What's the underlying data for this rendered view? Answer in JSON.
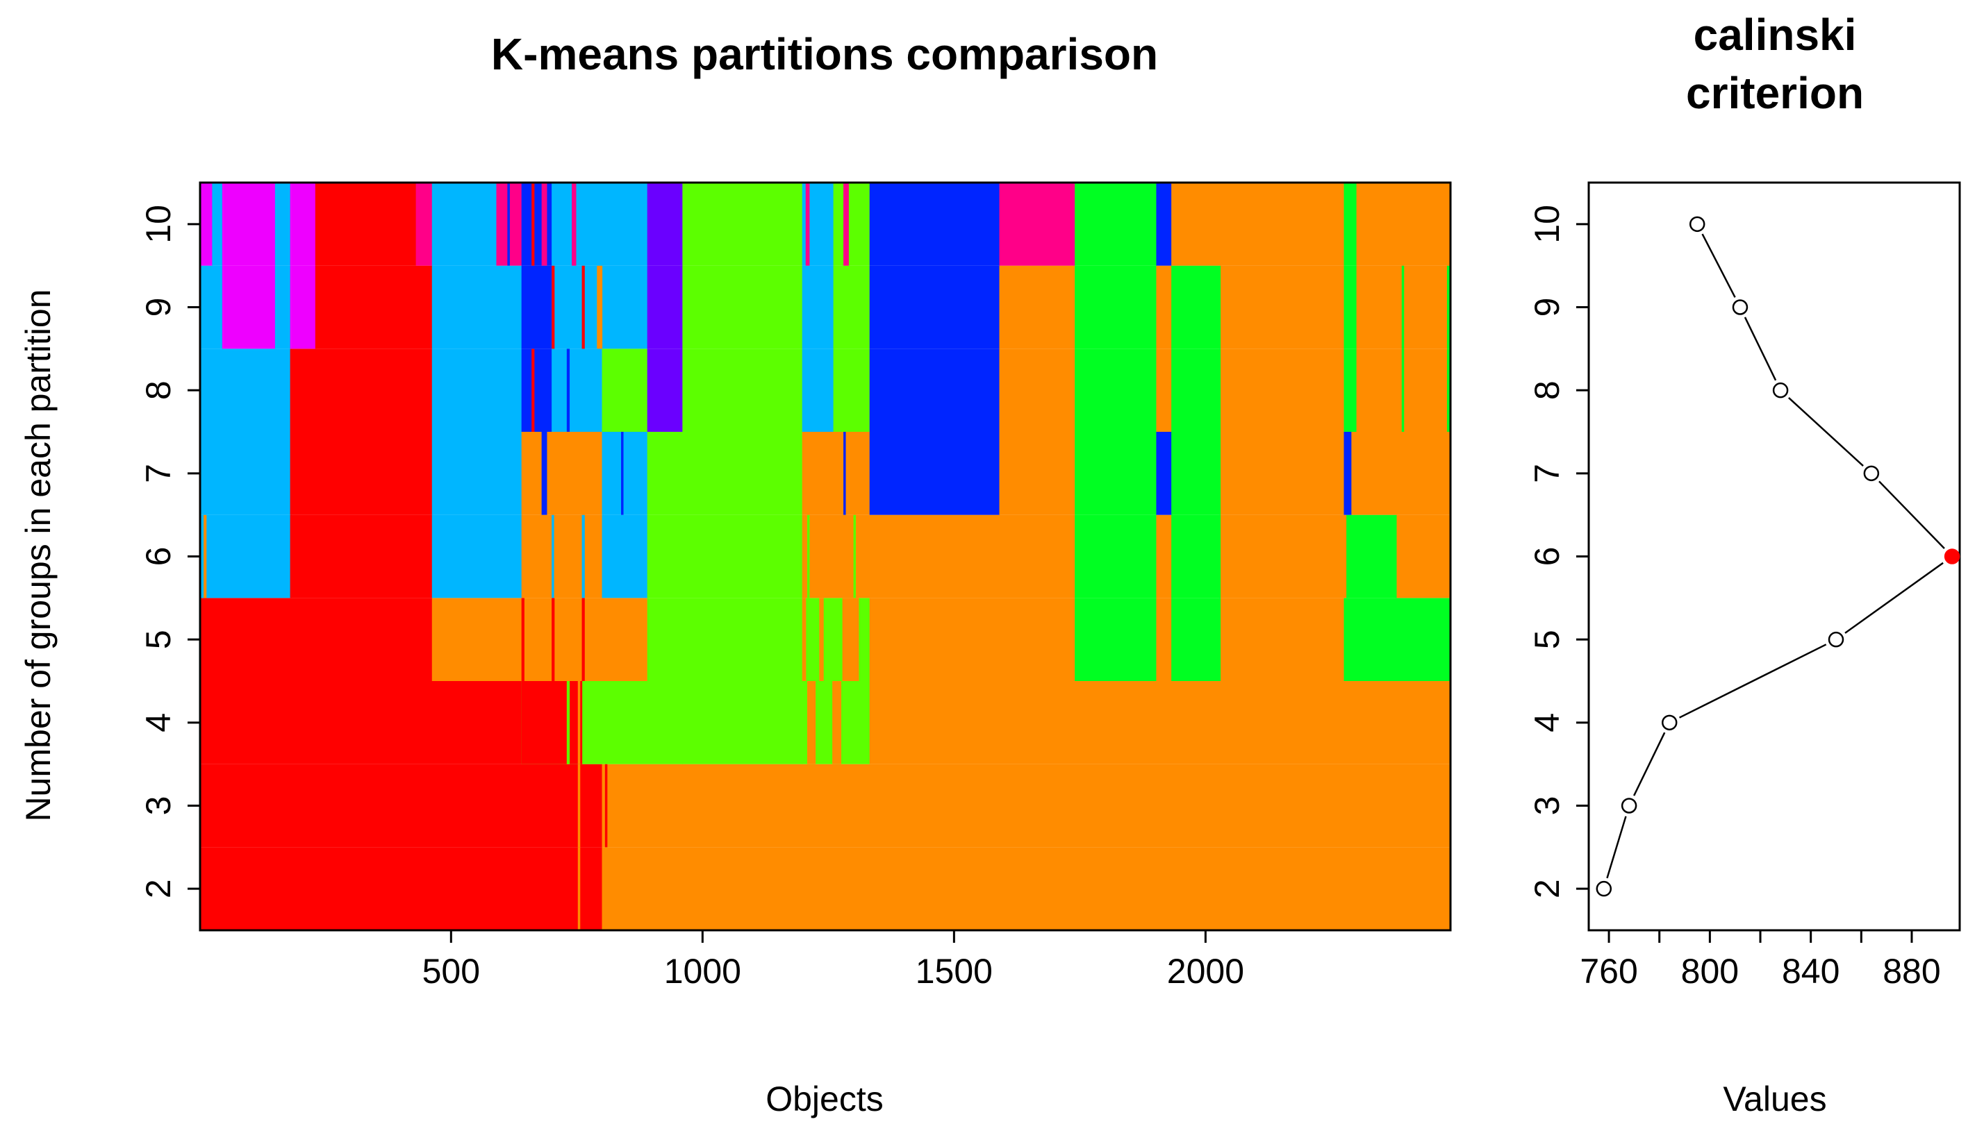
{
  "colors": {
    "k2_red": "#ff0000",
    "k3_orange": "#ff8c00",
    "k4_lime": "#5cff00",
    "k5_green": "#00ff22",
    "k6_cyan": "#00b6ff",
    "k7_blue": "#0025ff",
    "k8_violet": "#6a00ff",
    "k9_magenta": "#ee00ff",
    "k10_pink": "#ff0088",
    "point_fill": "#ffffff",
    "best_point": "#ff0000",
    "axis": "#000000"
  },
  "chart_data": [
    {
      "type": "heatmap",
      "title": "K-means partitions comparison",
      "xlabel": "Objects",
      "ylabel": "Number of groups in each partition",
      "xlim": [
        1,
        2487
      ],
      "ylim": [
        1.5,
        10.5
      ],
      "xticks": [
        500,
        1000,
        1500,
        2000
      ],
      "yticks": [
        2,
        3,
        4,
        5,
        6,
        7,
        8,
        9,
        10
      ],
      "rows": [
        {
          "k": 2,
          "segments": [
            [
              1,
              800,
              "k2_red"
            ],
            [
              800,
              2487,
              "k3_orange"
            ]
          ],
          "stripes": [
            [
              752,
              756,
              "k3_orange"
            ]
          ]
        },
        {
          "k": 3,
          "segments": [
            [
              1,
              800,
              "k2_red"
            ],
            [
              800,
              2487,
              "k3_orange"
            ]
          ],
          "stripes": [
            [
              752,
              756,
              "k3_orange"
            ],
            [
              806,
              810,
              "k2_red"
            ]
          ]
        },
        {
          "k": 4,
          "segments": [
            [
              1,
              640,
              "k2_red"
            ],
            [
              640,
              960,
              "k4_lime"
            ],
            [
              960,
              1198,
              "k4_lime"
            ],
            [
              1198,
              1332,
              "k4_lime"
            ],
            [
              1332,
              2487,
              "k3_orange"
            ]
          ],
          "stripes": [
            [
              640,
              760,
              "k2_red"
            ],
            [
              752,
              756,
              "k3_orange"
            ],
            [
              730,
              735,
              "k4_lime"
            ],
            [
              1208,
              1224,
              "k3_orange"
            ],
            [
              1258,
              1275,
              "k3_orange"
            ]
          ]
        },
        {
          "k": 5,
          "segments": [
            [
              1,
              462,
              "k2_red"
            ],
            [
              462,
              890,
              "k3_orange"
            ],
            [
              890,
              1332,
              "k4_lime"
            ],
            [
              1332,
              1740,
              "k3_orange"
            ],
            [
              1740,
              1902,
              "k5_green"
            ],
            [
              1902,
              1932,
              "k3_orange"
            ],
            [
              1932,
              2030,
              "k5_green"
            ],
            [
              2030,
              2275,
              "k3_orange"
            ],
            [
              2275,
              2487,
              "k5_green"
            ]
          ],
          "stripes": [
            [
              640,
              645,
              "k2_red"
            ],
            [
              700,
              705,
              "k2_red"
            ],
            [
              760,
              765,
              "k2_red"
            ],
            [
              1198,
              1205,
              "k3_orange"
            ],
            [
              1232,
              1240,
              "k3_orange"
            ],
            [
              1278,
              1310,
              "k3_orange"
            ]
          ]
        },
        {
          "k": 6,
          "segments": [
            [
              1,
              180,
              "k6_cyan"
            ],
            [
              180,
              462,
              "k2_red"
            ],
            [
              462,
              640,
              "k6_cyan"
            ],
            [
              640,
              800,
              "k3_orange"
            ],
            [
              800,
              890,
              "k6_cyan"
            ],
            [
              890,
              1198,
              "k4_lime"
            ],
            [
              1198,
              1740,
              "k3_orange"
            ],
            [
              1740,
              1902,
              "k5_green"
            ],
            [
              1902,
              1932,
              "k3_orange"
            ],
            [
              1932,
              2030,
              "k5_green"
            ],
            [
              2030,
              2280,
              "k3_orange"
            ],
            [
              2280,
              2380,
              "k5_green"
            ],
            [
              2380,
              2487,
              "k3_orange"
            ]
          ],
          "stripes": [
            [
              8,
              13,
              "k3_orange"
            ],
            [
              700,
              704,
              "k6_cyan"
            ],
            [
              760,
              765,
              "k6_cyan"
            ],
            [
              1208,
              1212,
              "k4_lime"
            ],
            [
              1300,
              1304,
              "k4_lime"
            ]
          ]
        },
        {
          "k": 7,
          "segments": [
            [
              1,
              180,
              "k6_cyan"
            ],
            [
              180,
              462,
              "k2_red"
            ],
            [
              462,
              640,
              "k6_cyan"
            ],
            [
              640,
              800,
              "k3_orange"
            ],
            [
              800,
              890,
              "k6_cyan"
            ],
            [
              890,
              1198,
              "k4_lime"
            ],
            [
              1198,
              1332,
              "k3_orange"
            ],
            [
              1332,
              1590,
              "k7_blue"
            ],
            [
              1590,
              1740,
              "k3_orange"
            ],
            [
              1740,
              1902,
              "k5_green"
            ],
            [
              1902,
              1932,
              "k7_blue"
            ],
            [
              1932,
              2030,
              "k5_green"
            ],
            [
              2030,
              2275,
              "k3_orange"
            ],
            [
              2275,
              2290,
              "k7_blue"
            ],
            [
              2290,
              2487,
              "k3_orange"
            ]
          ],
          "stripes": [
            [
              680,
              690,
              "k7_blue"
            ],
            [
              838,
              842,
              "k7_blue"
            ],
            [
              1280,
              1284,
              "k7_blue"
            ]
          ]
        },
        {
          "k": 8,
          "segments": [
            [
              1,
              180,
              "k6_cyan"
            ],
            [
              180,
              462,
              "k2_red"
            ],
            [
              462,
              640,
              "k6_cyan"
            ],
            [
              640,
              700,
              "k7_blue"
            ],
            [
              700,
              800,
              "k6_cyan"
            ],
            [
              800,
              890,
              "k4_lime"
            ],
            [
              890,
              960,
              "k8_violet"
            ],
            [
              960,
              1198,
              "k4_lime"
            ],
            [
              1198,
              1260,
              "k6_cyan"
            ],
            [
              1260,
              1332,
              "k4_lime"
            ],
            [
              1332,
              1590,
              "k7_blue"
            ],
            [
              1590,
              1740,
              "k3_orange"
            ],
            [
              1740,
              1902,
              "k5_green"
            ],
            [
              1902,
              1932,
              "k3_orange"
            ],
            [
              1932,
              2030,
              "k5_green"
            ],
            [
              2030,
              2275,
              "k3_orange"
            ],
            [
              2275,
              2300,
              "k5_green"
            ],
            [
              2300,
              2487,
              "k3_orange"
            ]
          ],
          "stripes": [
            [
              660,
              665,
              "k2_red"
            ],
            [
              730,
              735,
              "k7_blue"
            ],
            [
              2390,
              2394,
              "k5_green"
            ],
            [
              2480,
              2487,
              "k5_green"
            ]
          ]
        },
        {
          "k": 9,
          "segments": [
            [
              1,
              45,
              "k6_cyan"
            ],
            [
              45,
              150,
              "k9_magenta"
            ],
            [
              150,
              180,
              "k6_cyan"
            ],
            [
              180,
              230,
              "k9_magenta"
            ],
            [
              230,
              462,
              "k2_red"
            ],
            [
              462,
              640,
              "k6_cyan"
            ],
            [
              640,
              700,
              "k7_blue"
            ],
            [
              700,
              800,
              "k6_cyan"
            ],
            [
              800,
              890,
              "k6_cyan"
            ],
            [
              890,
              960,
              "k8_violet"
            ],
            [
              960,
              1198,
              "k4_lime"
            ],
            [
              1198,
              1260,
              "k6_cyan"
            ],
            [
              1260,
              1332,
              "k4_lime"
            ],
            [
              1332,
              1590,
              "k7_blue"
            ],
            [
              1590,
              1740,
              "k3_orange"
            ],
            [
              1740,
              1902,
              "k5_green"
            ],
            [
              1902,
              1932,
              "k3_orange"
            ],
            [
              1932,
              2030,
              "k5_green"
            ],
            [
              2030,
              2275,
              "k3_orange"
            ],
            [
              2275,
              2300,
              "k5_green"
            ],
            [
              2300,
              2487,
              "k3_orange"
            ]
          ],
          "stripes": [
            [
              700,
              705,
              "k2_red"
            ],
            [
              760,
              765,
              "k2_red"
            ],
            [
              790,
              800,
              "k3_orange"
            ],
            [
              2390,
              2394,
              "k5_green"
            ],
            [
              2480,
              2487,
              "k5_green"
            ]
          ]
        },
        {
          "k": 10,
          "segments": [
            [
              1,
              25,
              "k9_magenta"
            ],
            [
              25,
              45,
              "k6_cyan"
            ],
            [
              45,
              150,
              "k9_magenta"
            ],
            [
              150,
              180,
              "k6_cyan"
            ],
            [
              180,
              230,
              "k9_magenta"
            ],
            [
              230,
              430,
              "k2_red"
            ],
            [
              430,
              462,
              "k10_pink"
            ],
            [
              462,
              590,
              "k6_cyan"
            ],
            [
              590,
              640,
              "k10_pink"
            ],
            [
              640,
              700,
              "k7_blue"
            ],
            [
              700,
              800,
              "k6_cyan"
            ],
            [
              800,
              890,
              "k6_cyan"
            ],
            [
              890,
              960,
              "k8_violet"
            ],
            [
              960,
              1198,
              "k4_lime"
            ],
            [
              1198,
              1260,
              "k6_cyan"
            ],
            [
              1260,
              1332,
              "k4_lime"
            ],
            [
              1332,
              1590,
              "k7_blue"
            ],
            [
              1590,
              1740,
              "k10_pink"
            ],
            [
              1740,
              1902,
              "k5_green"
            ],
            [
              1902,
              1932,
              "k7_blue"
            ],
            [
              1932,
              2030,
              "k3_orange"
            ],
            [
              2030,
              2275,
              "k3_orange"
            ],
            [
              2275,
              2300,
              "k5_green"
            ],
            [
              2300,
              2487,
              "k3_orange"
            ]
          ],
          "stripes": [
            [
              612,
              616,
              "k7_blue"
            ],
            [
              660,
              665,
              "k2_red"
            ],
            [
              680,
              690,
              "k10_pink"
            ],
            [
              740,
              748,
              "k10_pink"
            ],
            [
              1205,
              1212,
              "k10_pink"
            ],
            [
              1280,
              1290,
              "k10_pink"
            ]
          ]
        }
      ]
    },
    {
      "type": "line",
      "title": "calinski criterion",
      "xlabel": "Values",
      "ylabel": "",
      "xlim": [
        752,
        899
      ],
      "ylim": [
        1.5,
        10.5
      ],
      "xticks": [
        760,
        780,
        800,
        820,
        840,
        860,
        880
      ],
      "xtick_labels": [
        "760",
        "800",
        "840",
        "880"
      ],
      "yticks": [
        2,
        3,
        4,
        5,
        6,
        7,
        8,
        9,
        10
      ],
      "series": [
        {
          "name": "calinski",
          "k": [
            2,
            3,
            4,
            5,
            6,
            7,
            8,
            9,
            10
          ],
          "values": [
            758,
            768,
            784,
            850,
            896,
            864,
            828,
            812,
            795
          ]
        }
      ],
      "best": {
        "k": 6,
        "value": 896
      }
    }
  ]
}
